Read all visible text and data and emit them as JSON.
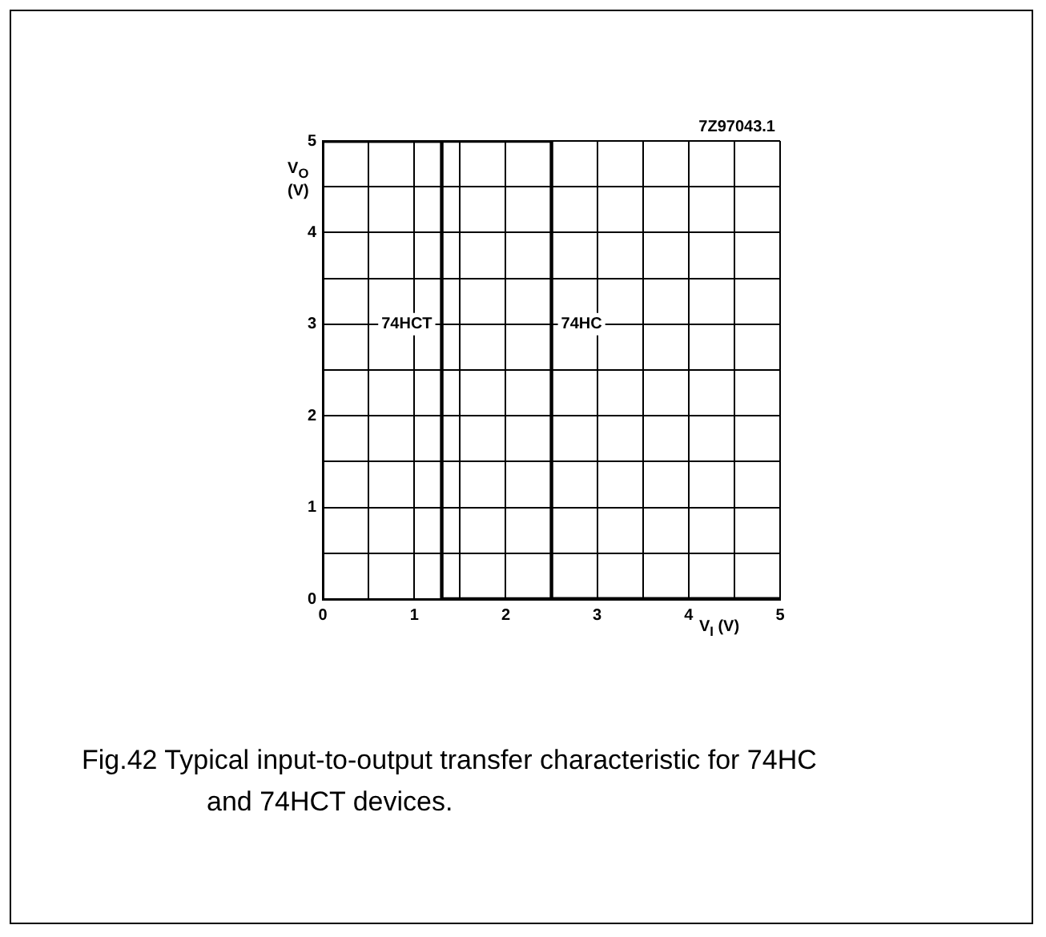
{
  "chart_data": {
    "type": "line",
    "series": [
      {
        "name": "74HCT",
        "color": "#000000",
        "x": [
          0,
          1.3,
          1.3,
          5
        ],
        "values": [
          5,
          5,
          0,
          0
        ]
      },
      {
        "name": "74HC",
        "color": "#000000",
        "x": [
          0,
          2.5,
          2.5,
          5
        ],
        "values": [
          5,
          5,
          0,
          0
        ]
      }
    ],
    "xlabel": "V$_{I}$ (V)",
    "ylabel": "V$_{O}$ (V)",
    "xlim": [
      0,
      5
    ],
    "ylim": [
      0,
      5
    ],
    "xticks": [
      0,
      {
        "value": 0.5,
        "label": null
      },
      1,
      {
        "value": 1.5,
        "label": null
      },
      2,
      {
        "value": 2.5,
        "label": null
      },
      3,
      {
        "value": 3.5,
        "label": null
      },
      4,
      {
        "value": 4.5,
        "label": null
      },
      5
    ],
    "yticks": [
      0,
      {
        "value": 0.5,
        "label": null
      },
      1,
      {
        "value": 1.5,
        "label": null
      },
      2,
      {
        "value": 2.5,
        "label": null
      },
      3,
      {
        "value": 3.5,
        "label": null
      },
      4,
      {
        "value": 4.5,
        "label": null
      },
      5
    ],
    "grid": true,
    "legend": false,
    "marker": "none",
    "line_style": "solid",
    "annotations": [
      "7Z97043.1",
      "Fig.42  Typical input-to-output transfer characteristic for 74HC and 74HCT devices."
    ]
  }
}
